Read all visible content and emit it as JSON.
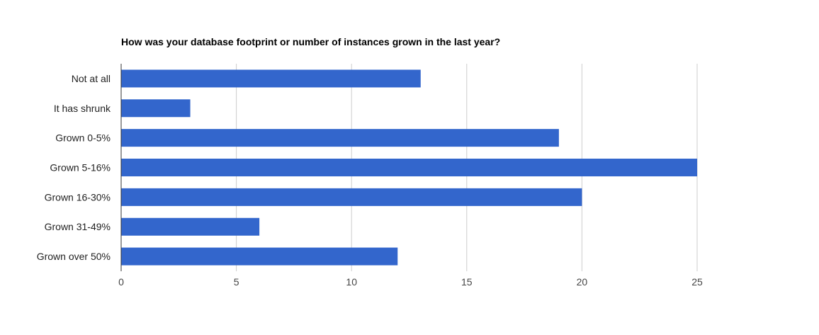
{
  "chart_data": {
    "type": "bar",
    "orientation": "horizontal",
    "title": "How was your database footprint or number of instances grown in the last year?",
    "categories": [
      "Not at all",
      "It has shrunk",
      "Grown 0-5%",
      "Grown 5-16%",
      "Grown 16-30%",
      "Grown 31-49%",
      "Grown over 50%"
    ],
    "values": [
      13,
      3,
      19,
      25,
      20,
      6,
      12
    ],
    "xlim": [
      0,
      25
    ],
    "xticks": [
      0,
      5,
      10,
      15,
      20,
      25
    ],
    "xlabel": "",
    "ylabel": "",
    "grid": true,
    "legend": "none",
    "bar_color": "#3366cc"
  }
}
